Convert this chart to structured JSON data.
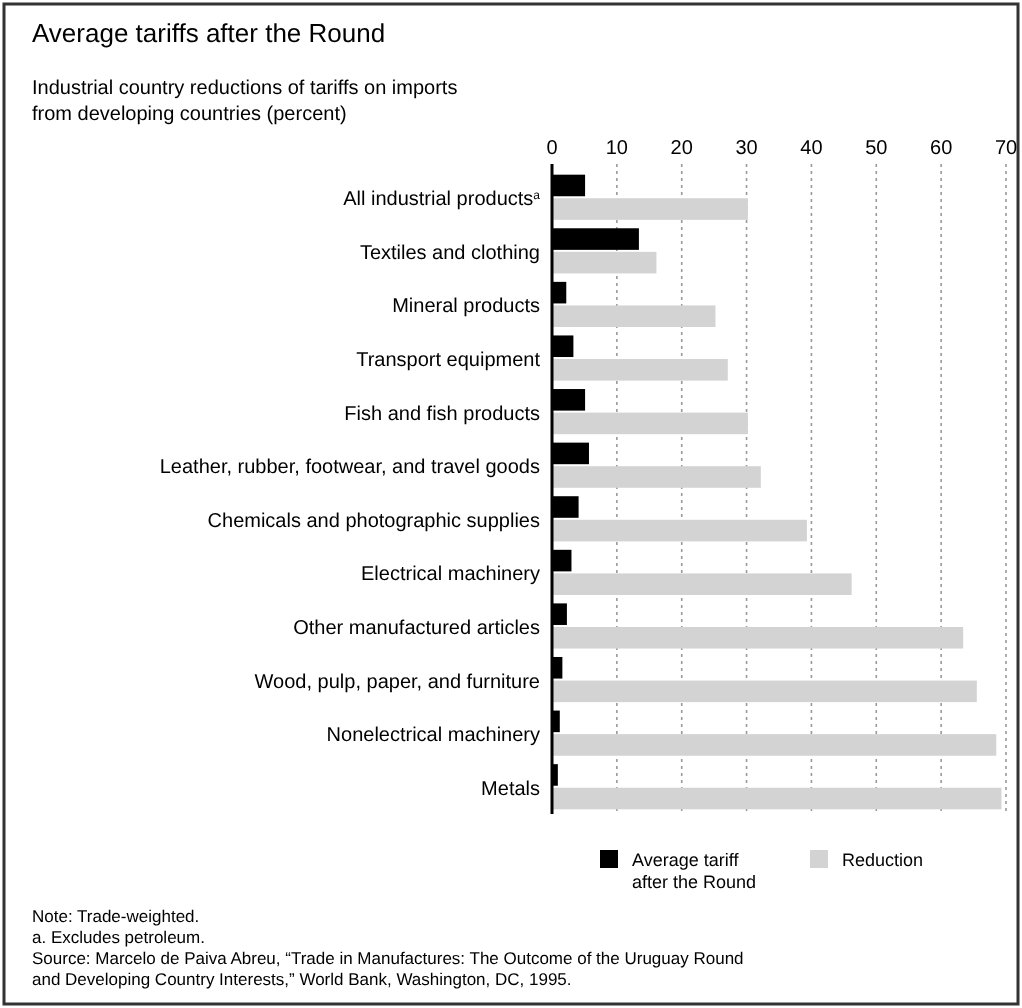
{
  "chart_data": {
    "type": "bar",
    "orientation": "horizontal",
    "title": "Average tariffs after the Round",
    "subtitle": "Industrial country reductions of tariffs on imports\nfrom developing countries (percent)",
    "categories": [
      "All industrial products$^{a}$",
      "Textiles and clothing",
      "Mineral products",
      "Transport equipment",
      "Fish and fish products",
      "Leather, rubber, footwear, and travel goods",
      "Chemicals and photographic supplies",
      "Electrical machinery",
      "Other manufactured articles",
      "Wood, pulp, paper, and furniture",
      "Nonelectrical machinery",
      "Metals"
    ],
    "series": [
      {
        "name": "Average tariff\nafter the Round",
        "color": "#000000",
        "values": [
          5.1,
          13.4,
          2.2,
          3.3,
          5.1,
          5.7,
          4.1,
          3.0,
          2.3,
          1.6,
          1.2,
          0.9
        ]
      },
      {
        "name": "Reduction",
        "color": "#d3d3d3",
        "values": [
          30.2,
          16.1,
          25.2,
          27.1,
          30.2,
          32.2,
          39.3,
          46.2,
          63.4,
          65.5,
          68.5,
          69.3
        ]
      }
    ],
    "xlim": [
      0,
      70
    ],
    "xticks": [
      0,
      10,
      20,
      30,
      40,
      50,
      60,
      70
    ],
    "grid": "x",
    "legend": "bottom",
    "annotations": [
      "Note: Trade-weighted.",
      "a. Excludes petroleum.",
      "Source: Marcelo de Paiva Abreu, “Trade in Manufactures: The Outcome of the Uruguay Round\nand Developing Country Interests,” World Bank, Washington, DC, 1995."
    ]
  }
}
